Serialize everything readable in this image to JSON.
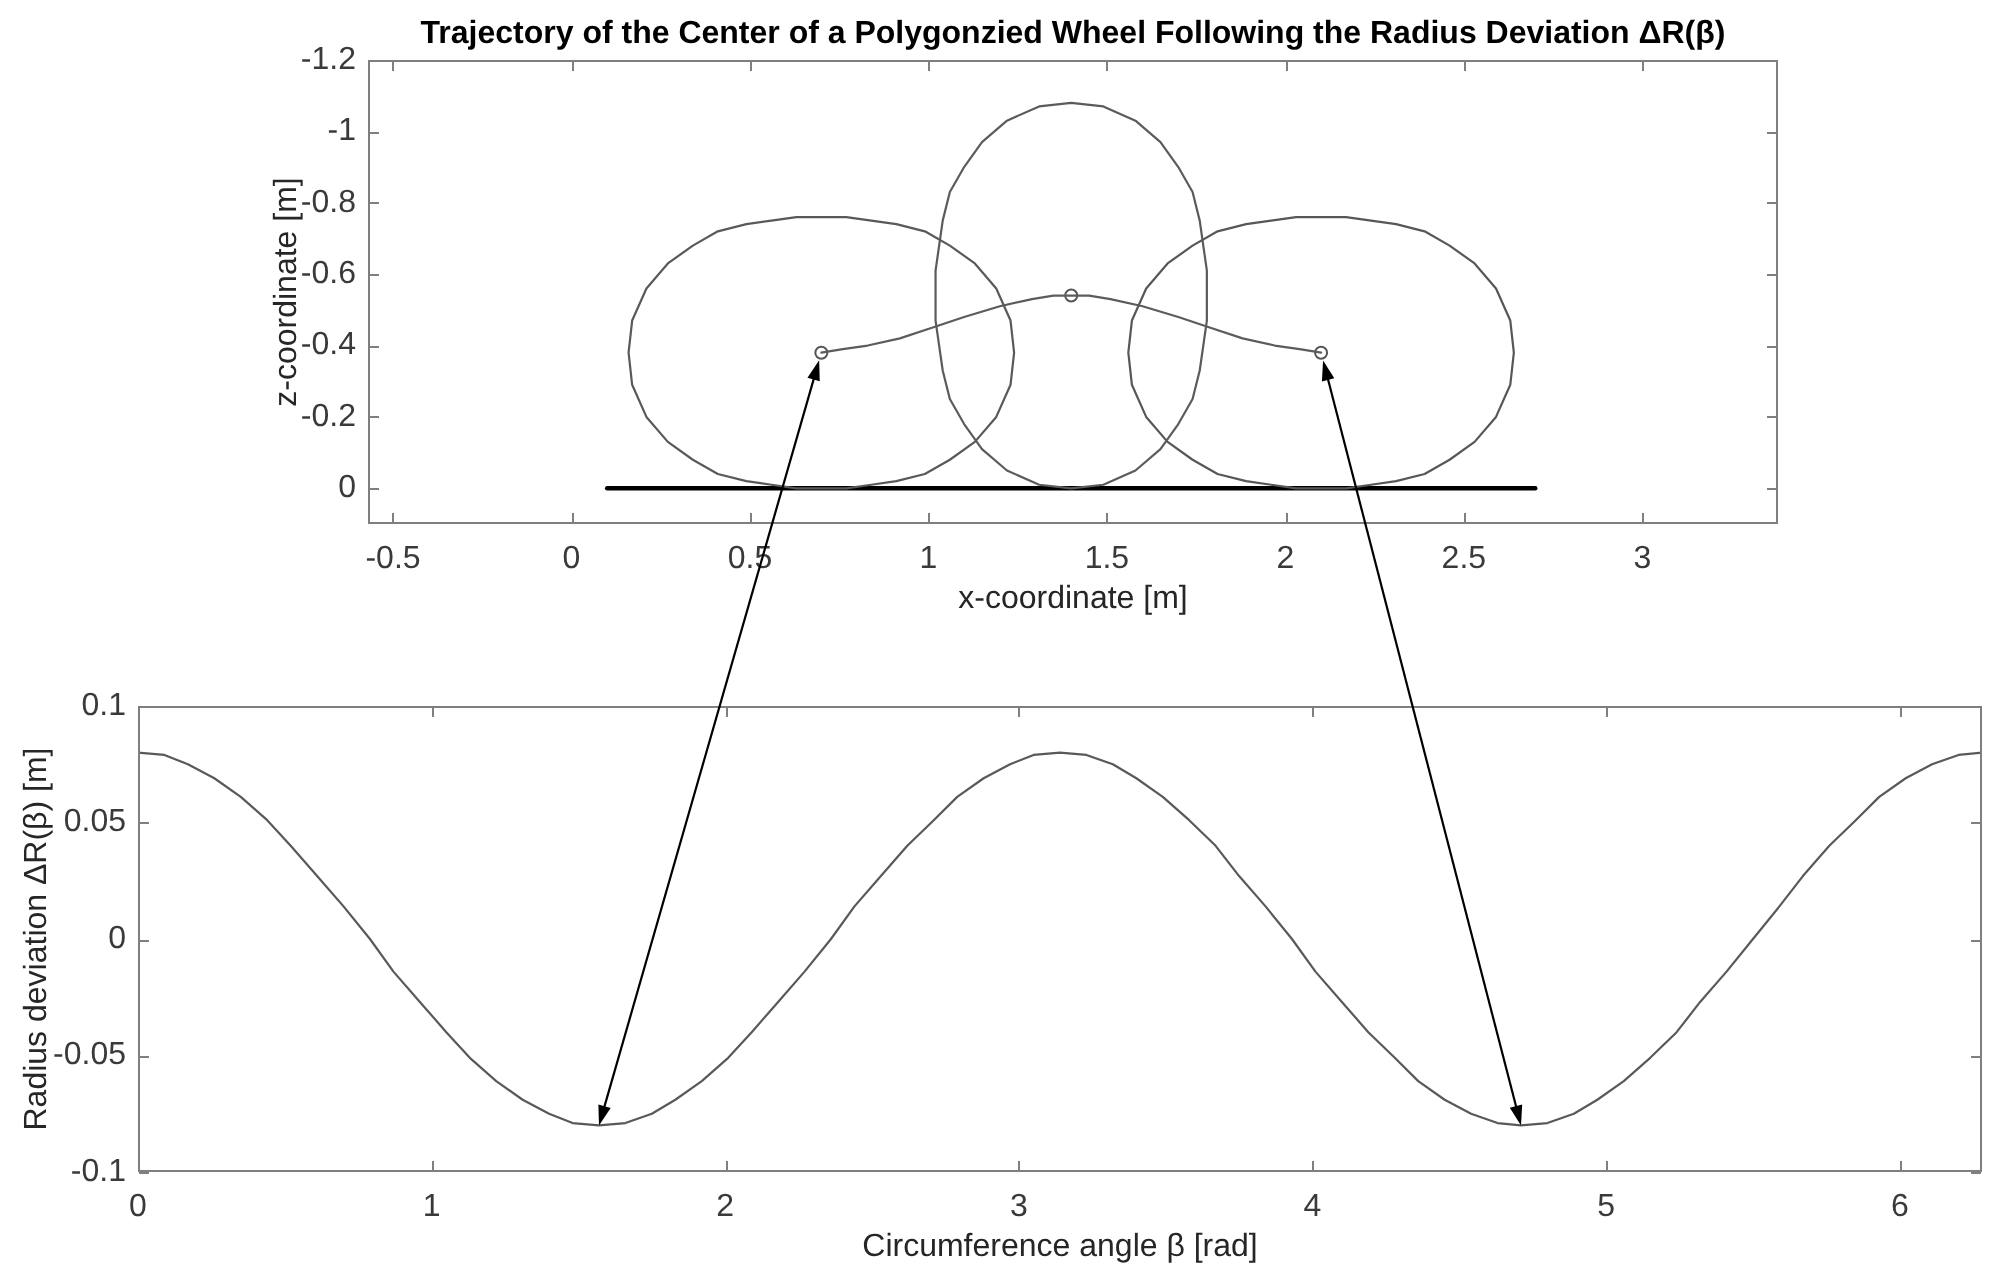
{
  "chart_data": [
    {
      "type": "line",
      "title": "Trajectory of the Center of a Polygonzied Wheel Following the Radius Deviation ΔR(β)",
      "xlabel": "x-coordinate [m]",
      "ylabel": "z-coordinate [m]",
      "marker": "none",
      "xlim": [
        -0.57,
        3.38
      ],
      "xticks": [
        -0.5,
        0,
        0.5,
        1,
        1.5,
        2,
        2.5,
        3
      ],
      "ylim": [
        0.1,
        -1.2
      ],
      "yticks": [
        -1.2,
        -1,
        -0.8,
        -0.6,
        -0.4,
        -0.2,
        0
      ],
      "series": [
        {
          "color": "#595959",
          "x": [
            0.16,
            0.17,
            0.21,
            0.27,
            0.34,
            0.41,
            0.49,
            0.56,
            0.63,
            0.7,
            0.77,
            0.84,
            0.91,
            0.99,
            1.06,
            1.13,
            1.19,
            1.23,
            1.24,
            null,
            0.16,
            0.17,
            0.21,
            0.27,
            0.34,
            0.41,
            0.49,
            0.56,
            0.63,
            0.7,
            0.77,
            0.84,
            0.91,
            0.99,
            1.06,
            1.13,
            1.19,
            1.23,
            1.24
          ],
          "values": [
            -0.38,
            -0.47,
            -0.56,
            -0.63,
            -0.68,
            -0.72,
            -0.74,
            -0.75,
            -0.76,
            -0.76,
            -0.76,
            -0.75,
            -0.74,
            -0.72,
            -0.68,
            -0.63,
            -0.56,
            -0.47,
            -0.38,
            null,
            -0.38,
            -0.29,
            -0.2,
            -0.13,
            -0.08,
            -0.04,
            -0.02,
            -0.01,
            0,
            0,
            0,
            -0.01,
            -0.02,
            -0.04,
            -0.08,
            -0.13,
            -0.2,
            -0.29,
            -0.38
          ]
        },
        {
          "color": "#5b5b5b",
          "x": [
            1.02,
            1.02,
            1.03,
            1.04,
            1.06,
            1.1,
            1.15,
            1.22,
            1.31,
            1.4,
            1.49,
            1.58,
            1.65,
            1.7,
            1.74,
            1.76,
            1.77,
            1.78,
            1.78,
            null,
            1.02,
            1.02,
            1.03,
            1.04,
            1.06,
            1.1,
            1.15,
            1.22,
            1.31,
            1.4,
            1.49,
            1.58,
            1.65,
            1.7,
            1.74,
            1.76,
            1.77,
            1.78,
            1.78
          ],
          "values": [
            -0.54,
            -0.61,
            -0.68,
            -0.75,
            -0.83,
            -0.9,
            -0.97,
            -1.03,
            -1.07,
            -1.08,
            -1.07,
            -1.03,
            -0.97,
            -0.9,
            -0.83,
            -0.75,
            -0.68,
            -0.61,
            -0.54,
            null,
            -0.54,
            -0.47,
            -0.4,
            -0.33,
            -0.25,
            -0.18,
            -0.11,
            -0.05,
            -0.01,
            0,
            -0.01,
            -0.05,
            -0.11,
            -0.18,
            -0.25,
            -0.33,
            -0.4,
            -0.47,
            -0.54
          ]
        },
        {
          "color": "#575757",
          "x": [
            1.56,
            1.57,
            1.61,
            1.67,
            1.74,
            1.81,
            1.89,
            1.96,
            2.03,
            2.1,
            2.17,
            2.24,
            2.31,
            2.39,
            2.46,
            2.53,
            2.59,
            2.63,
            2.64,
            null,
            1.56,
            1.57,
            1.61,
            1.67,
            1.74,
            1.81,
            1.89,
            1.96,
            2.03,
            2.1,
            2.17,
            2.24,
            2.31,
            2.39,
            2.46,
            2.53,
            2.59,
            2.63,
            2.64
          ],
          "values": [
            -0.38,
            -0.47,
            -0.56,
            -0.63,
            -0.68,
            -0.72,
            -0.74,
            -0.75,
            -0.76,
            -0.76,
            -0.76,
            -0.75,
            -0.74,
            -0.72,
            -0.68,
            -0.63,
            -0.56,
            -0.47,
            -0.38,
            null,
            -0.38,
            -0.29,
            -0.2,
            -0.13,
            -0.08,
            -0.04,
            -0.02,
            -0.01,
            0,
            0,
            0,
            -0.01,
            -0.02,
            -0.04,
            -0.08,
            -0.13,
            -0.2,
            -0.29,
            -0.38
          ]
        },
        {
          "color": "#5c5c5c",
          "x": [
            0.7,
            0.76,
            0.83,
            0.92,
            1.01,
            1.1,
            1.2,
            1.29,
            1.35,
            1.4,
            1.45,
            1.51,
            1.6,
            1.7,
            1.79,
            1.88,
            1.97,
            2.04,
            2.1
          ],
          "values": [
            -0.38,
            -0.39,
            -0.4,
            -0.42,
            -0.45,
            -0.48,
            -0.51,
            -0.53,
            -0.54,
            -0.54,
            -0.54,
            -0.53,
            -0.51,
            -0.48,
            -0.45,
            -0.42,
            -0.4,
            -0.39,
            -0.38
          ]
        },
        {
          "color": "#000000",
          "x": [
            0.1,
            2.7
          ],
          "values": [
            0,
            0
          ]
        },
        {
          "type": "scatter",
          "marker": "circle",
          "color": "#555555",
          "x": [
            0.7,
            1.4,
            2.1
          ],
          "values": [
            -0.38,
            -0.54,
            -0.38
          ]
        }
      ]
    },
    {
      "type": "line",
      "xlabel": "Circumference angle β [rad]",
      "ylabel": "Radius deviation ΔR(β) [m]",
      "marker": "none",
      "color": "#595959",
      "xlim": [
        0,
        6.28
      ],
      "xticks": [
        0,
        1,
        2,
        3,
        4,
        5,
        6
      ],
      "ylim": [
        -0.1,
        0.1
      ],
      "yticks": [
        -0.1,
        -0.05,
        0,
        0.05,
        0.1
      ],
      "x": [
        0,
        0.09,
        0.17,
        0.26,
        0.35,
        0.44,
        0.52,
        0.61,
        0.7,
        0.79,
        0.87,
        0.96,
        1.05,
        1.13,
        1.22,
        1.31,
        1.4,
        1.48,
        1.57,
        1.66,
        1.75,
        1.83,
        1.92,
        2.01,
        2.09,
        2.18,
        2.27,
        2.36,
        2.44,
        2.53,
        2.62,
        2.71,
        2.79,
        2.88,
        2.97,
        3.05,
        3.14,
        3.23,
        3.32,
        3.4,
        3.49,
        3.58,
        3.67,
        3.75,
        3.84,
        3.93,
        4.01,
        4.1,
        4.19,
        4.28,
        4.36,
        4.45,
        4.54,
        4.63,
        4.71,
        4.8,
        4.89,
        4.97,
        5.06,
        5.15,
        5.24,
        5.32,
        5.41,
        5.5,
        5.59,
        5.67,
        5.76,
        5.85,
        5.93,
        6.02,
        6.11,
        6.2,
        6.28
      ],
      "values": [
        0.08,
        0.079,
        0.075,
        0.069,
        0.061,
        0.051,
        0.04,
        0.027,
        0.014,
        0,
        -0.014,
        -0.027,
        -0.04,
        -0.051,
        -0.061,
        -0.069,
        -0.075,
        -0.079,
        -0.08,
        -0.079,
        -0.075,
        -0.069,
        -0.061,
        -0.051,
        -0.04,
        -0.027,
        -0.014,
        0,
        0.014,
        0.027,
        0.04,
        0.051,
        0.061,
        0.069,
        0.075,
        0.079,
        0.08,
        0.079,
        0.075,
        0.069,
        0.061,
        0.051,
        0.04,
        0.027,
        0.014,
        0,
        -0.014,
        -0.027,
        -0.04,
        -0.051,
        -0.061,
        -0.069,
        -0.075,
        -0.079,
        -0.08,
        -0.079,
        -0.075,
        -0.069,
        -0.061,
        -0.051,
        -0.04,
        -0.027,
        -0.014,
        0,
        0.014,
        0.027,
        0.04,
        0.051,
        0.061,
        0.069,
        0.075,
        0.079,
        0.08
      ]
    }
  ]
}
